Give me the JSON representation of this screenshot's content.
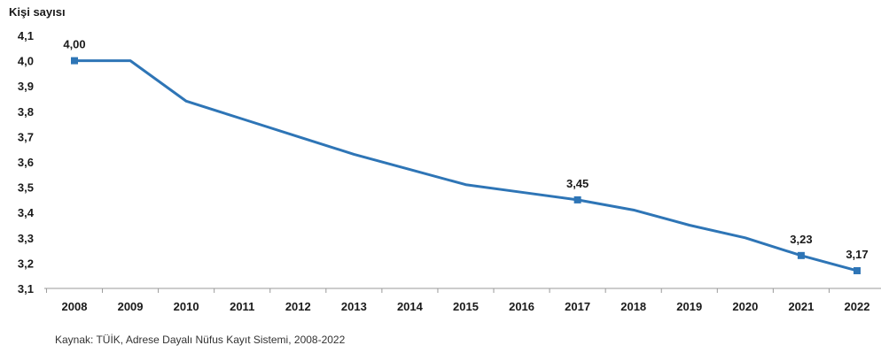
{
  "chart_data": {
    "type": "line",
    "ylabel": "Kişi sayısı",
    "x": [
      "2008",
      "2009",
      "2010",
      "2011",
      "2012",
      "2013",
      "2014",
      "2015",
      "2016",
      "2017",
      "2018",
      "2019",
      "2020",
      "2021",
      "2022"
    ],
    "series": [
      {
        "values": [
          4.0,
          4.0,
          3.84,
          3.77,
          3.7,
          3.63,
          3.57,
          3.51,
          3.48,
          3.45,
          3.41,
          3.35,
          3.3,
          3.23,
          3.17
        ],
        "color": "#2e75b6"
      }
    ],
    "ylim": [
      3.1,
      4.1
    ],
    "yticks": [
      "4,1",
      "4,0",
      "3,9",
      "3,8",
      "3,7",
      "3,6",
      "3,5",
      "3,4",
      "3,3",
      "3,2",
      "3,1"
    ],
    "ytick_values": [
      4.1,
      4.0,
      3.9,
      3.8,
      3.7,
      3.6,
      3.5,
      3.4,
      3.3,
      3.2,
      3.1
    ],
    "markers": [
      {
        "x": "2008",
        "label": "4,00"
      },
      {
        "x": "2017",
        "label": "3,45"
      },
      {
        "x": "2021",
        "label": "3,23"
      },
      {
        "x": "2022",
        "label": "3,17"
      }
    ],
    "grid": false,
    "legend": "none"
  },
  "source": "Kaynak: TÜİK, Adrese Dayalı Nüfus Kayıt Sistemi, 2008-2022"
}
